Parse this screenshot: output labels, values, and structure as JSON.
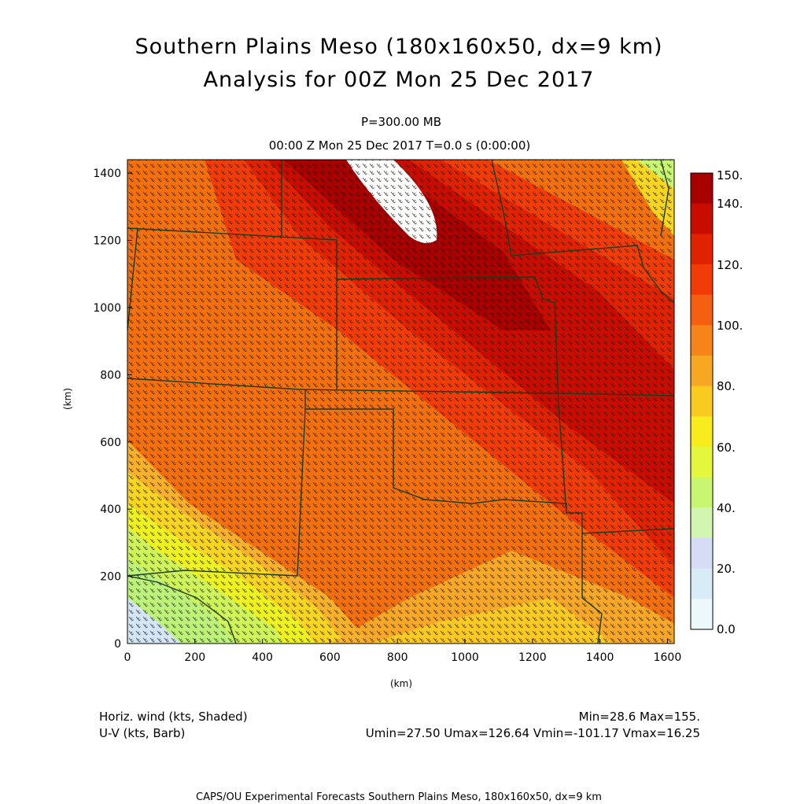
{
  "header": {
    "title_line1": "Southern Plains Meso (180x160x50, dx=9 km)",
    "title_line2": "Analysis for 00Z Mon 25 Dec 2017",
    "level": "P=300.00 MB",
    "time": "00:00 Z Mon 25 Dec 2017    T=0.0 s (0:00:00)"
  },
  "axes": {
    "x_label": "(km)",
    "y_label": "(km)",
    "x_ticks": [
      "0",
      "200",
      "400",
      "600",
      "800",
      "1000",
      "1200",
      "1400",
      "1600"
    ],
    "y_ticks": [
      "0",
      "200",
      "400",
      "600",
      "800",
      "1000",
      "1200",
      "1400"
    ],
    "x_range": [
      0,
      1620
    ],
    "y_range": [
      0,
      1440
    ]
  },
  "colorbar": {
    "labels": [
      "150.",
      "140.",
      "120.",
      "100.",
      "80.",
      "60.",
      "40.",
      "20.",
      "0.0"
    ],
    "colors": [
      "#a80000",
      "#c80d00",
      "#e02200",
      "#f23c08",
      "#f46010",
      "#f78418",
      "#f8a722",
      "#fbca1e",
      "#f8ec1c",
      "#e4f73c",
      "#c9f670",
      "#d2f5b0",
      "#d6dcf6",
      "#d8ecf8",
      "#ecf8fc"
    ]
  },
  "footer": {
    "field1": "Horiz. wind (kts, Shaded)",
    "field2": "U-V (kts, Barb)",
    "stats1": "Min=28.6 Max=155.",
    "stats2": "Umin=27.50 Umax=126.64 Vmin=-101.17 Vmax=16.25",
    "credit": "CAPS/OU Experimental Forecasts  Southern Plains Meso, 180x160x50, dx=9 km"
  },
  "wind_field": {
    "min": 28.6,
    "max": 155.0,
    "units": "kts",
    "jet_max_region": "northern Colorado / Nebraska / Kansas"
  }
}
